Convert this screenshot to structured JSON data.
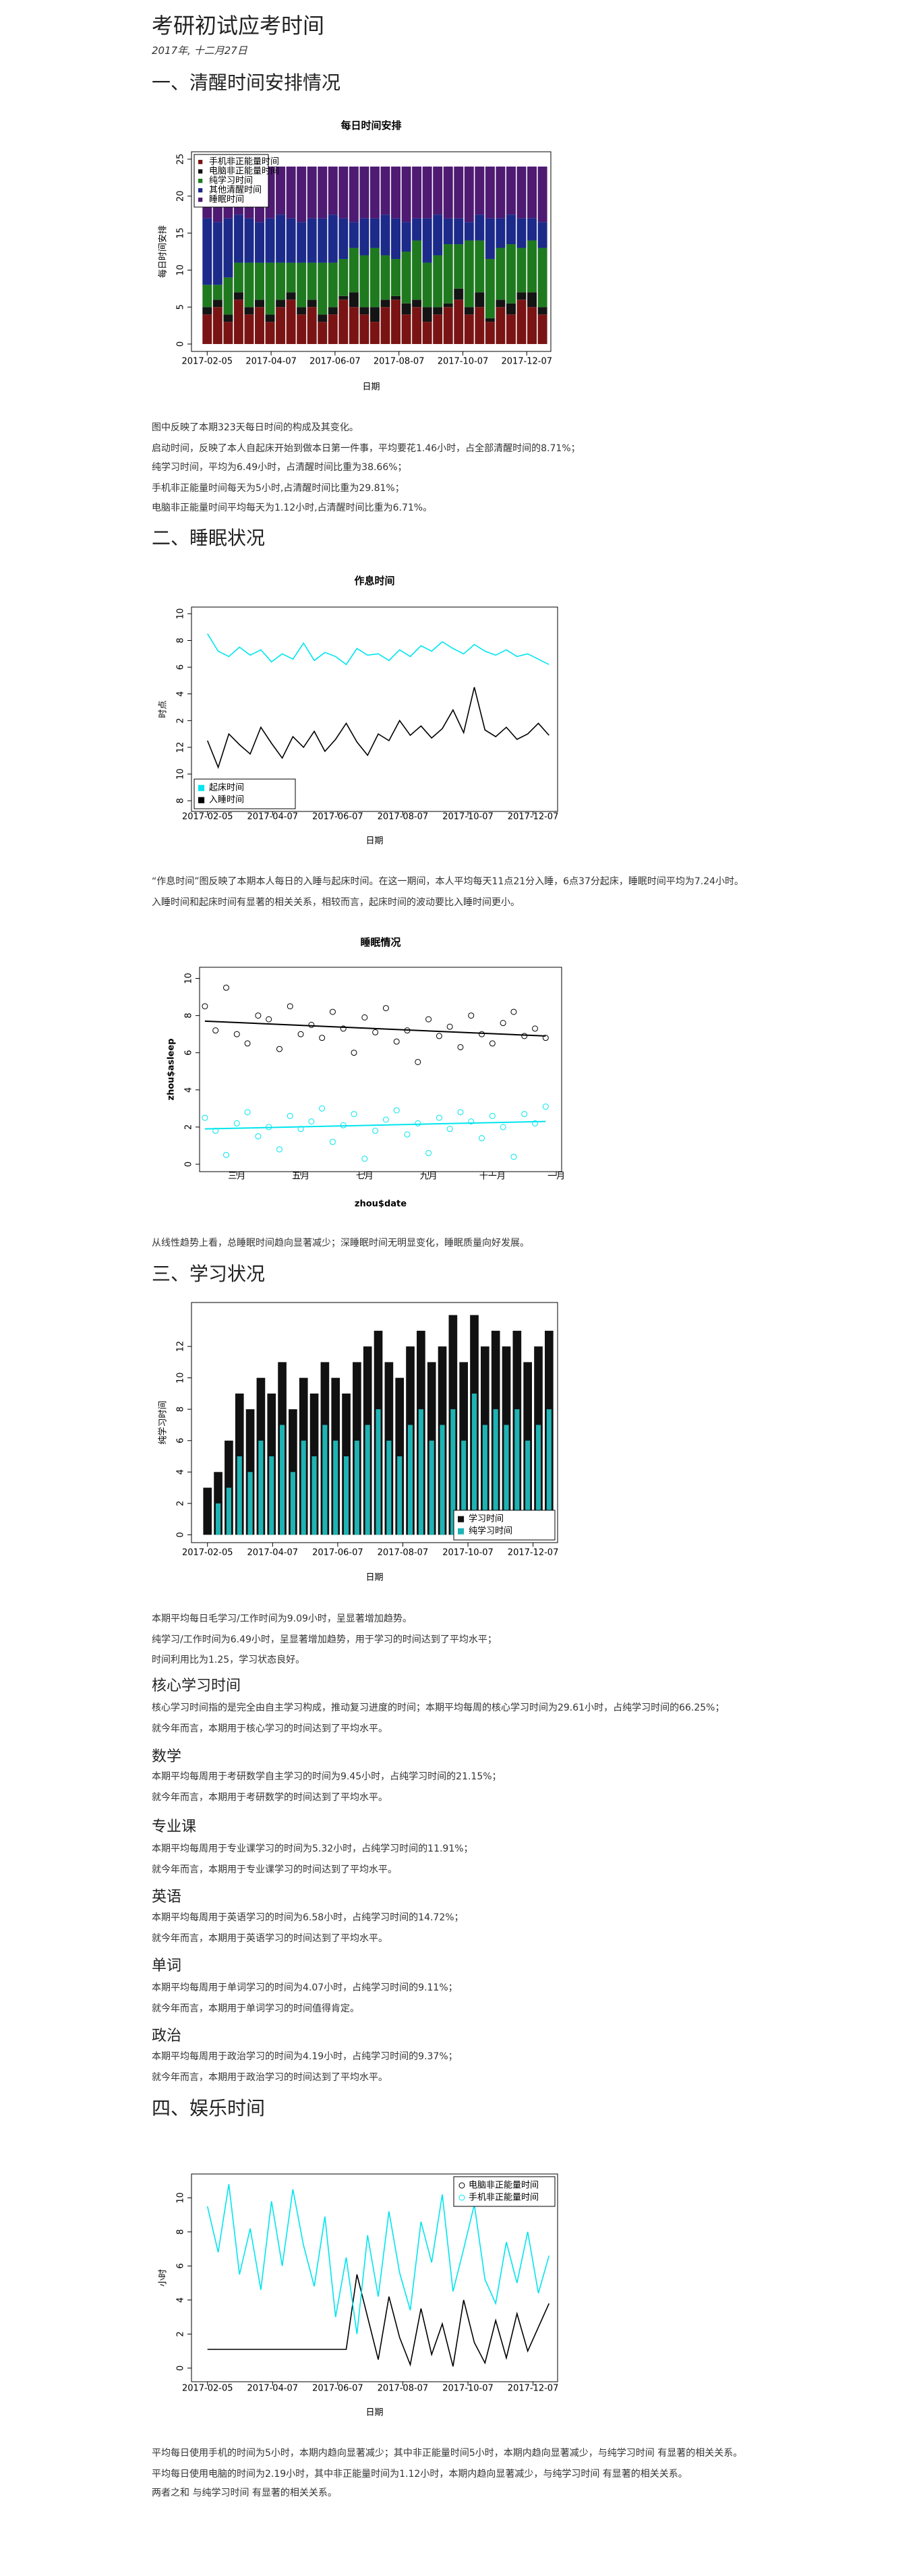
{
  "header": {
    "title": "考研初试应考时间",
    "date": "2017年, 十二月27日"
  },
  "sections": [
    {
      "heading": "一、清醒时间安排情况",
      "paragraphs": [
        "图中反映了本期323天每日时间的构成及其变化。",
        "启动时间，反映了本人自起床开始到做本日第一件事，平均要花1.46小时，占全部清醒时间的8.71%；",
        "纯学习时间，平均为6.49小时，占清醒时间比重为38.66%；",
        "手机非正能量时间每天为5小时,占清醒时间比重为29.81%；",
        "电脑非正能量时间平均每天为1.12小时,占清醒时间比重为6.71%。"
      ]
    },
    {
      "heading": "二、睡眠状况",
      "paragraphs": [
        "“作息时间”图反映了本期本人每日的入睡与起床时间。在这一期间，本人平均每天11点21分入睡，6点37分起床，睡眠时间平均为7.24小时。",
        "入睡时间和起床时间有显著的相关关系，相较而言，起床时间的波动要比入睡时间更小。",
        "从线性趋势上看，总睡眠时间趋向显著减少；深睡眠时间无明显变化，睡眠质量向好发展。"
      ]
    },
    {
      "heading": "三、学习状况",
      "paragraphs": [
        "本期平均每日毛学习/工作时间为9.09小时，呈显著增加趋势。",
        "纯学习/工作时间为6.49小时，呈显著增加趋势，用于学习的时间达到了平均水平；",
        "时间利用比为1.25，学习状态良好。"
      ],
      "subsections": [
        {
          "heading": "核心学习时间",
          "paragraphs": [
            "核心学习时间指的是完全由自主学习构成，推动复习进度的时间；本期平均每周的核心学习时间为29.61小时，占纯学习时间的66.25%；",
            "就今年而言，本期用于核心学习的时间达到了平均水平。"
          ]
        },
        {
          "heading": "数学",
          "paragraphs": [
            "本期平均每周用于考研数学自主学习的时间为9.45小时，占纯学习时间的21.15%；",
            "就今年而言，本期用于考研数学的时间达到了平均水平。"
          ]
        },
        {
          "heading": "专业课",
          "paragraphs": [
            "本期平均每周用于专业课学习的时间为5.32小时，占纯学习时间的11.91%；",
            "就今年而言，本期用于专业课学习的时间达到了平均水平。"
          ]
        },
        {
          "heading": "英语",
          "paragraphs": [
            "本期平均每周用于英语学习的时间为6.58小时，占纯学习时间的14.72%；",
            "就今年而言，本期用于英语学习的时间达到了平均水平。"
          ]
        },
        {
          "heading": "单词",
          "paragraphs": [
            "本期平均每周用于单词学习的时间为4.07小时，占纯学习时间的9.11%；",
            "就今年而言，本期用于单词学习的时间值得肯定。"
          ]
        },
        {
          "heading": "政治",
          "paragraphs": [
            "本期平均每周用于政治学习的时间为4.19小时，占纯学习时间的9.37%；",
            "就今年而言，本期用于政治学习的时间达到了平均水平。"
          ]
        }
      ]
    },
    {
      "heading": "四、娱乐时间",
      "paragraphs": [
        "平均每日使用手机的时间为5小时，本期内趋向显著减少；其中非正能量时间5小时，本期内趋向显著减少，与纯学习时间 有显著的相关关系。",
        "平均每日使用电脑的时间为2.19小时，其中非正能量时间为1.12小时，本期内趋向显著减少，与纯学习时间 有显著的相关关系。",
        "两者之和 与纯学习时间 有显著的相关关系。"
      ]
    }
  ],
  "chart_data": [
    {
      "type": "bar",
      "stacked": true,
      "title": "每日时间安排",
      "x_label": "日期",
      "y_label": "每日时间安排",
      "legend": "top-left",
      "x": [
        "2017-02-05",
        "2017-02-15",
        "2017-02-25",
        "2017-03-07",
        "2017-03-17",
        "2017-03-27",
        "2017-04-06",
        "2017-04-16",
        "2017-04-26",
        "2017-05-06",
        "2017-05-16",
        "2017-05-26",
        "2017-06-05",
        "2017-06-15",
        "2017-06-25",
        "2017-07-05",
        "2017-07-15",
        "2017-07-25",
        "2017-08-04",
        "2017-08-14",
        "2017-08-24",
        "2017-09-03",
        "2017-09-13",
        "2017-09-23",
        "2017-10-03",
        "2017-10-13",
        "2017-10-23",
        "2017-11-02",
        "2017-11-12",
        "2017-11-22",
        "2017-12-02",
        "2017-12-12",
        "2017-12-22"
      ],
      "xlim": [
        "2017-01-21",
        "2017-12-30"
      ],
      "xticks": [
        "2017-02-05",
        "2017-04-07",
        "2017-06-07",
        "2017-08-07",
        "2017-10-07",
        "2017-12-07"
      ],
      "ylim": [
        -1,
        26
      ],
      "yticks": [
        0,
        5,
        10,
        15,
        20,
        25
      ],
      "series": [
        {
          "name": "手机非正能量时间",
          "color": "#7a1414",
          "values": [
            4,
            5,
            3,
            6,
            4,
            5,
            3,
            5,
            6,
            4,
            5,
            3,
            4,
            6,
            5,
            4,
            3,
            5,
            6,
            4,
            5,
            3,
            4,
            5,
            6,
            4,
            5,
            3,
            5,
            4,
            6,
            5,
            4
          ]
        },
        {
          "name": "电脑非正能量时间",
          "color": "#141414",
          "values": [
            1,
            1,
            1,
            1,
            1,
            1,
            1,
            1,
            1,
            1,
            1,
            1,
            1,
            0.5,
            2,
            1,
            2,
            1,
            0.5,
            1.5,
            1,
            2,
            1,
            0.5,
            1.5,
            1,
            2,
            0.5,
            1,
            1.5,
            1,
            2,
            1
          ]
        },
        {
          "name": "纯学习时间",
          "color": "#1f7a1f",
          "values": [
            3,
            2,
            5,
            4,
            6,
            5,
            7,
            5,
            4,
            6,
            5,
            7,
            6,
            5,
            6,
            7,
            8,
            6,
            5,
            7,
            8,
            6,
            7,
            8,
            6,
            9,
            7,
            8,
            7,
            8,
            6,
            7,
            8
          ]
        },
        {
          "name": "其他清醒时间",
          "color": "#1c2a8a",
          "values": [
            9,
            8.5,
            8,
            6.5,
            6,
            5.5,
            6,
            6.5,
            6,
            5.5,
            6,
            6,
            6.5,
            5.5,
            3.5,
            5,
            4,
            5.5,
            5.5,
            4,
            3,
            6,
            5.5,
            3.5,
            3.5,
            2.5,
            3.5,
            5.5,
            4,
            4,
            4,
            3,
            3.5
          ]
        },
        {
          "name": "睡眠时间",
          "color": "#4e1a72",
          "values": [
            7,
            7.5,
            7,
            6.5,
            7,
            7.5,
            7,
            6.5,
            7,
            7.5,
            7,
            7,
            6.5,
            7,
            7.5,
            7,
            7,
            6.5,
            7,
            7.5,
            7,
            7,
            6.5,
            7,
            7,
            7.5,
            6.5,
            7,
            7,
            6.5,
            7,
            7,
            7.5
          ]
        }
      ]
    },
    {
      "type": "line",
      "title": "作息时间",
      "x_label": "日期",
      "y_label": "时点",
      "legend": "bottom-left",
      "x": [
        "2017-02-05",
        "2017-02-15",
        "2017-02-25",
        "2017-03-07",
        "2017-03-17",
        "2017-03-27",
        "2017-04-06",
        "2017-04-16",
        "2017-04-26",
        "2017-05-06",
        "2017-05-16",
        "2017-05-26",
        "2017-06-05",
        "2017-06-15",
        "2017-06-25",
        "2017-07-05",
        "2017-07-15",
        "2017-07-25",
        "2017-08-04",
        "2017-08-14",
        "2017-08-24",
        "2017-09-03",
        "2017-09-13",
        "2017-09-23",
        "2017-10-03",
        "2017-10-13",
        "2017-10-23",
        "2017-11-02",
        "2017-11-12",
        "2017-11-22",
        "2017-12-02",
        "2017-12-12",
        "2017-12-22"
      ],
      "xlim": [
        "2017-01-21",
        "2017-12-30"
      ],
      "xticks": [
        "2017-02-05",
        "2017-04-07",
        "2017-06-07",
        "2017-08-07",
        "2017-10-07",
        "2017-12-07"
      ],
      "ylim": [
        -4.8,
        10.5
      ],
      "yticks": [
        10,
        8,
        6,
        4,
        2,
        {
          "value": 0,
          "label": "12"
        },
        {
          "value": -2,
          "label": "10"
        },
        {
          "value": -4,
          "label": "8"
        }
      ],
      "series": [
        {
          "name": "起床时间",
          "color": "#00e5ee",
          "values": [
            8.5,
            7.2,
            6.8,
            7.5,
            6.9,
            7.3,
            6.4,
            7.0,
            6.6,
            7.8,
            6.5,
            7.1,
            6.8,
            6.2,
            7.4,
            6.9,
            7.0,
            6.5,
            7.3,
            6.8,
            7.6,
            7.2,
            7.9,
            7.4,
            7.0,
            7.7,
            7.2,
            6.9,
            7.3,
            6.8,
            7.0,
            6.6,
            6.2
          ]
        },
        {
          "name": "入睡时间",
          "color": "#000000",
          "values": [
            0.5,
            -1.5,
            1.0,
            0.2,
            -0.5,
            1.5,
            0.3,
            -0.8,
            0.8,
            0.0,
            1.2,
            -0.3,
            0.6,
            1.8,
            0.4,
            -0.6,
            1.0,
            0.5,
            2.0,
            0.9,
            1.6,
            0.7,
            1.4,
            2.8,
            1.1,
            4.5,
            1.3,
            0.8,
            1.5,
            0.6,
            1.0,
            1.8,
            0.9
          ]
        }
      ]
    },
    {
      "type": "scatter",
      "title": "睡眠情况",
      "x_label": "zhou$date",
      "y_label": "zhou$asleep",
      "categories": [
        null,
        null,
        null,
        "三月",
        null,
        null,
        null,
        null,
        null,
        "五月",
        null,
        null,
        null,
        null,
        null,
        "七月",
        null,
        null,
        null,
        null,
        null,
        "九月",
        null,
        null,
        null,
        null,
        null,
        "十一月",
        null,
        null,
        null,
        null,
        null,
        "一月"
      ],
      "ylim": [
        -0.4,
        10.6
      ],
      "yticks": [
        0,
        2,
        4,
        6,
        8,
        10
      ],
      "series": [
        {
          "color": "#000000",
          "values": [
            8.5,
            7.2,
            9.5,
            7.0,
            6.5,
            8.0,
            7.8,
            6.2,
            8.5,
            7.0,
            7.5,
            6.8,
            8.2,
            7.3,
            6.0,
            7.9,
            7.1,
            8.4,
            6.6,
            7.2,
            5.5,
            7.8,
            6.9,
            7.4,
            6.3,
            8.0,
            7.0,
            6.5,
            7.6,
            8.2,
            6.9,
            7.3,
            6.8,
            null
          ],
          "trend": [
            7.7,
            6.9
          ]
        },
        {
          "color": "#00e5ee",
          "values": [
            2.5,
            1.8,
            0.5,
            2.2,
            2.8,
            1.5,
            2.0,
            0.8,
            2.6,
            1.9,
            2.3,
            3.0,
            1.2,
            2.1,
            2.7,
            0.3,
            1.8,
            2.4,
            2.9,
            1.6,
            2.2,
            0.6,
            2.5,
            1.9,
            2.8,
            2.3,
            1.4,
            2.6,
            2.0,
            0.4,
            2.7,
            2.2,
            3.1,
            null
          ],
          "trend": [
            1.9,
            2.3
          ]
        }
      ]
    },
    {
      "type": "bar",
      "stacked": false,
      "x_label": "日期",
      "y_label": "纯学习时间",
      "legend": "bottom-right",
      "x": [
        "2017-02-05",
        "2017-02-15",
        "2017-02-25",
        "2017-03-07",
        "2017-03-17",
        "2017-03-27",
        "2017-04-06",
        "2017-04-16",
        "2017-04-26",
        "2017-05-06",
        "2017-05-16",
        "2017-05-26",
        "2017-06-05",
        "2017-06-15",
        "2017-06-25",
        "2017-07-05",
        "2017-07-15",
        "2017-07-25",
        "2017-08-04",
        "2017-08-14",
        "2017-08-24",
        "2017-09-03",
        "2017-09-13",
        "2017-09-23",
        "2017-10-03",
        "2017-10-13",
        "2017-10-23",
        "2017-11-02",
        "2017-11-12",
        "2017-11-22",
        "2017-12-02",
        "2017-12-12",
        "2017-12-22"
      ],
      "xlim": [
        "2017-01-21",
        "2017-12-30"
      ],
      "xticks": [
        "2017-02-05",
        "2017-04-07",
        "2017-06-07",
        "2017-08-07",
        "2017-10-07",
        "2017-12-07"
      ],
      "ylim": [
        -0.5,
        14.8
      ],
      "yticks": [
        0,
        2,
        4,
        6,
        8,
        10,
        12
      ],
      "series": [
        {
          "name": "学习时间",
          "color": "#111111",
          "values": [
            3,
            4,
            6,
            9,
            8,
            10,
            9,
            11,
            8,
            10,
            9,
            11,
            10,
            9,
            11,
            12,
            13,
            11,
            10,
            12,
            13,
            11,
            12,
            14,
            11,
            14,
            12,
            13,
            12,
            13,
            11,
            12,
            13
          ]
        },
        {
          "name": "纯学习时间",
          "color": "#1fb3b3",
          "values": [
            0,
            2,
            3,
            5,
            4,
            6,
            5,
            7,
            4,
            6,
            5,
            7,
            6,
            5,
            6,
            7,
            8,
            6,
            5,
            7,
            8,
            6,
            7,
            8,
            6,
            9,
            7,
            8,
            7,
            8,
            6,
            7,
            8
          ]
        }
      ]
    },
    {
      "type": "line",
      "x_label": "日期",
      "y_label": "小时",
      "legend": "top-right",
      "x": [
        "2017-02-05",
        "2017-02-15",
        "2017-02-25",
        "2017-03-07",
        "2017-03-17",
        "2017-03-27",
        "2017-04-06",
        "2017-04-16",
        "2017-04-26",
        "2017-05-06",
        "2017-05-16",
        "2017-05-26",
        "2017-06-05",
        "2017-06-15",
        "2017-06-25",
        "2017-07-05",
        "2017-07-15",
        "2017-07-25",
        "2017-08-04",
        "2017-08-14",
        "2017-08-24",
        "2017-09-03",
        "2017-09-13",
        "2017-09-23",
        "2017-10-03",
        "2017-10-13",
        "2017-10-23",
        "2017-11-02",
        "2017-11-12",
        "2017-11-22",
        "2017-12-02",
        "2017-12-12",
        "2017-12-22"
      ],
      "xlim": [
        "2017-01-21",
        "2017-12-30"
      ],
      "xticks": [
        "2017-02-05",
        "2017-04-07",
        "2017-06-07",
        "2017-08-07",
        "2017-10-07",
        "2017-12-07"
      ],
      "ylim": [
        -0.8,
        11.4
      ],
      "yticks": [
        0,
        2,
        4,
        6,
        8,
        10
      ],
      "series": [
        {
          "name": "电脑非正能量时间",
          "color": "#000000",
          "values": [
            1.1,
            1.1,
            1.1,
            1.1,
            1.1,
            1.1,
            1.1,
            1.1,
            1.1,
            1.1,
            1.1,
            1.1,
            1.1,
            1.1,
            5.5,
            3.0,
            0.5,
            4.2,
            1.8,
            0.2,
            3.5,
            0.8,
            2.6,
            0.1,
            4.0,
            1.5,
            0.3,
            2.8,
            0.6,
            3.2,
            1.0,
            2.4,
            3.8
          ]
        },
        {
          "name": "手机非正能量时间",
          "color": "#00e5ee",
          "values": [
            9.5,
            6.8,
            10.8,
            5.5,
            8.2,
            4.6,
            9.8,
            6.0,
            10.5,
            7.2,
            4.8,
            8.9,
            3.0,
            6.5,
            2.0,
            7.8,
            4.2,
            9.2,
            5.6,
            3.4,
            8.6,
            6.2,
            10.2,
            4.5,
            7.0,
            9.6,
            5.2,
            3.8,
            7.4,
            5.0,
            8.0,
            4.4,
            6.6
          ]
        }
      ]
    }
  ]
}
